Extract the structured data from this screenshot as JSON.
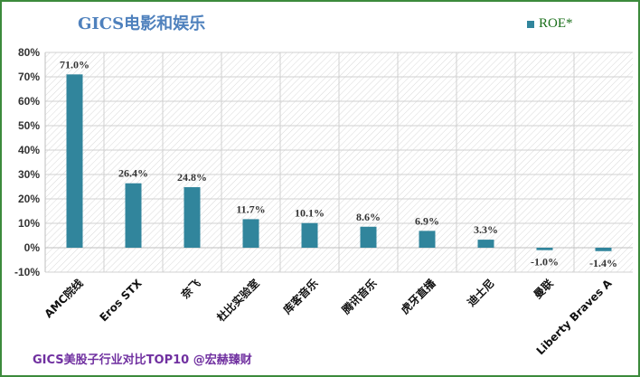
{
  "chart_data": {
    "type": "bar",
    "title": "GICS电影和娱乐",
    "categories": [
      "AMC院线",
      "Eros STX",
      "奈飞",
      "杜比实验室",
      "库客音乐",
      "腾讯音乐",
      "虎牙直播",
      "迪士尼",
      "曼联",
      "Liberty Braves A"
    ],
    "series": [
      {
        "name": "ROE*",
        "values": [
          71.0,
          26.4,
          24.8,
          11.7,
          10.1,
          8.6,
          6.9,
          3.3,
          -1.0,
          -1.4
        ],
        "labels": [
          "71.0%",
          "26.4%",
          "24.8%",
          "11.7%",
          "10.1%",
          "8.6%",
          "6.9%",
          "3.3%",
          "-1.0%",
          "-1.4%"
        ]
      }
    ],
    "ylim": [
      -10,
      80
    ],
    "yticks": [
      -10,
      0,
      10,
      20,
      30,
      40,
      50,
      60,
      70,
      80
    ],
    "ytick_labels": [
      "-10%",
      "0%",
      "10%",
      "20%",
      "30%",
      "40%",
      "50%",
      "60%",
      "70%",
      "80%"
    ],
    "grid": true,
    "legend": "top-right",
    "color": "#31859c"
  },
  "footer": "GICS美股子行业对比TOP10 @宏赫臻财"
}
